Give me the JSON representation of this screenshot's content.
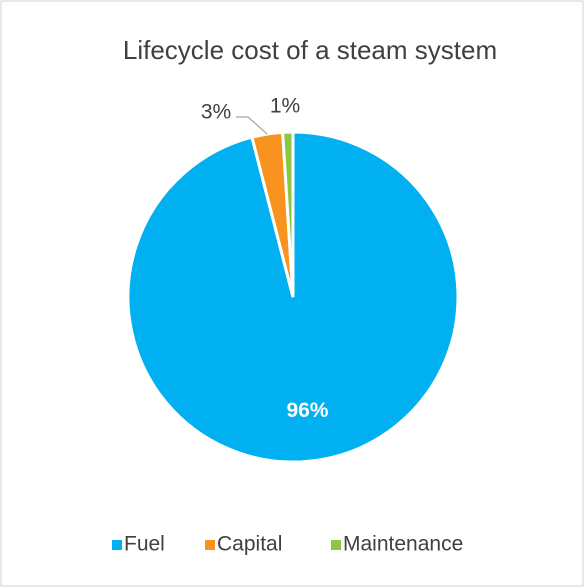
{
  "chart_data": {
    "type": "pie",
    "title": "Lifecycle cost of a steam system",
    "categories": [
      "Fuel",
      "Capital",
      "Maintenance"
    ],
    "values": [
      96,
      3,
      1
    ],
    "value_labels": [
      "96%",
      "3%",
      "1%"
    ],
    "colors": [
      "#00b0f0",
      "#f7931e",
      "#8dc63f"
    ],
    "legend": "bottom"
  }
}
